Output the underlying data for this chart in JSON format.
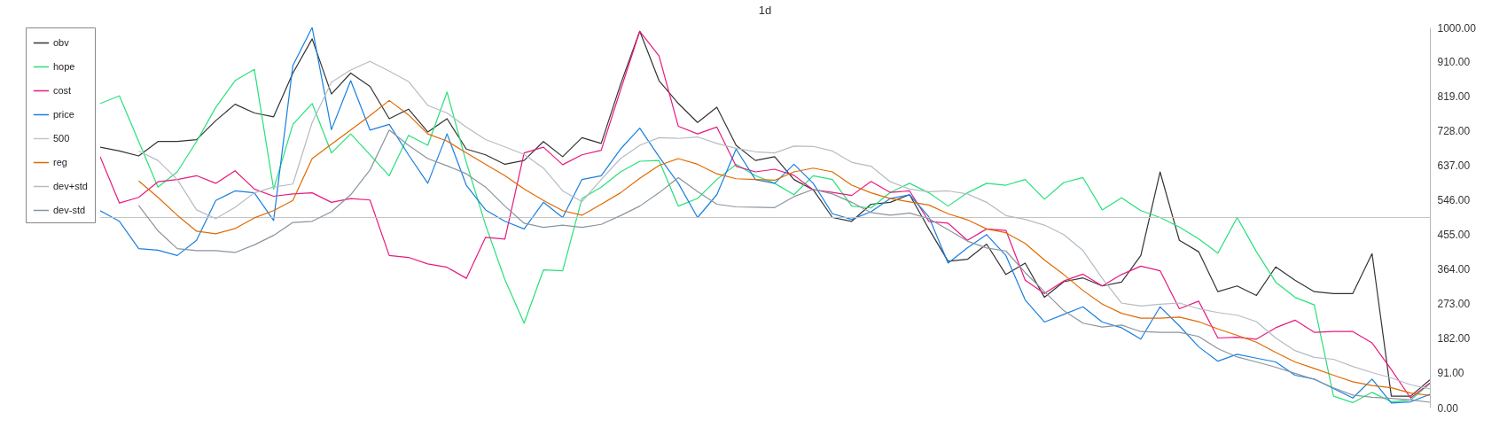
{
  "chart_data": {
    "type": "line",
    "title": "1d",
    "categories": [
      null,
      null,
      null,
      null,
      null,
      null,
      null,
      null,
      null,
      null,
      null,
      null,
      null,
      null,
      null,
      null,
      null,
      null,
      null,
      null,
      null,
      null,
      null,
      null,
      null,
      null,
      null,
      null,
      null,
      null,
      null,
      null,
      null,
      null,
      null,
      null,
      null,
      null,
      null,
      null,
      null,
      null,
      null,
      null,
      null,
      null,
      null,
      null,
      null,
      null,
      null,
      null,
      null,
      null,
      null,
      null,
      null,
      null,
      null,
      null,
      null,
      null,
      null,
      null,
      null,
      null,
      null,
      null,
      null,
      null
    ],
    "ylim": [
      0,
      1000
    ],
    "yticks": [
      {
        "value": 0,
        "label": "0.00"
      },
      {
        "value": 91,
        "label": "91.00"
      },
      {
        "value": 182,
        "label": "182.00"
      },
      {
        "value": 273,
        "label": "273.00"
      },
      {
        "value": 364,
        "label": "364.00"
      },
      {
        "value": 455,
        "label": "455.00"
      },
      {
        "value": 546,
        "label": "546.00"
      },
      {
        "value": 637,
        "label": "637.00"
      },
      {
        "value": 728,
        "label": "728.00"
      },
      {
        "value": 819,
        "label": "819.00"
      },
      {
        "value": 910,
        "label": "910.00"
      },
      {
        "value": 1000,
        "label": "1000.00"
      }
    ],
    "tick_labels": "y",
    "legend": "top left",
    "series": [
      {
        "name": "obv",
        "color": "#333333",
        "values": [
          685,
          675,
          662,
          700,
          700,
          705,
          755,
          798,
          775,
          765,
          880,
          970,
          825,
          880,
          845,
          760,
          785,
          725,
          760,
          680,
          665,
          640,
          650,
          700,
          660,
          710,
          695,
          850,
          990,
          860,
          800,
          750,
          790,
          690,
          650,
          660,
          600,
          573,
          500,
          490,
          535,
          540,
          560,
          470,
          385,
          390,
          430,
          350,
          380,
          290,
          331,
          341,
          320,
          330,
          400,
          620,
          440,
          410,
          305,
          320,
          295,
          370,
          335,
          305,
          300,
          300,
          405,
          30,
          30,
          73
        ]
      },
      {
        "name": "hope",
        "color": "#27e07a",
        "values": [
          800,
          820,
          700,
          580,
          620,
          700,
          790,
          860,
          890,
          575,
          745,
          800,
          670,
          720,
          665,
          610,
          716,
          690,
          830,
          645,
          480,
          337,
          222,
          362,
          360,
          550,
          580,
          620,
          648,
          650,
          530,
          550,
          600,
          640,
          610,
          590,
          560,
          610,
          600,
          530,
          525,
          566,
          590,
          565,
          530,
          565,
          590,
          585,
          600,
          548,
          592,
          605,
          520,
          552,
          518,
          500,
          475,
          444,
          406,
          500,
          410,
          330,
          290,
          270,
          30,
          13,
          40,
          15,
          20,
          63
        ]
      },
      {
        "name": "cost",
        "color": "#e8197f",
        "values": [
          660,
          538,
          553,
          594,
          600,
          610,
          590,
          623,
          575,
          556,
          562,
          565,
          540,
          550,
          546,
          400,
          395,
          378,
          369,
          340,
          448,
          443,
          670,
          685,
          639,
          665,
          677,
          835,
          990,
          925,
          740,
          720,
          738,
          635,
          620,
          627,
          611,
          573,
          566,
          558,
          595,
          566,
          570,
          490,
          485,
          440,
          470,
          466,
          335,
          300,
          333,
          351,
          320,
          350,
          372,
          360,
          260,
          280,
          183,
          185,
          180,
          210,
          230,
          198,
          200,
          200,
          170,
          100,
          25,
          65
        ]
      },
      {
        "name": "price",
        "color": "#1a7fe0",
        "values": [
          518,
          490,
          418,
          414,
          400,
          440,
          545,
          570,
          565,
          492,
          900,
          1000,
          731,
          860,
          730,
          745,
          665,
          590,
          720,
          585,
          520,
          490,
          470,
          540,
          500,
          600,
          610,
          680,
          735,
          660,
          590,
          500,
          560,
          680,
          600,
          590,
          640,
          590,
          510,
          495,
          515,
          550,
          560,
          502,
          380,
          420,
          455,
          400,
          283,
          225,
          245,
          265,
          225,
          210,
          180,
          265,
          215,
          160,
          122,
          140,
          130,
          120,
          85,
          75,
          50,
          25,
          75,
          12,
          15,
          35
        ]
      },
      {
        "name": "500",
        "color": "#c4c4c4",
        "values": [
          500,
          500,
          500,
          500,
          500,
          500,
          500,
          500,
          500,
          500,
          500,
          500,
          500,
          500,
          500,
          500,
          500,
          500,
          500,
          500,
          500,
          500,
          500,
          500,
          500,
          500,
          500,
          500,
          500,
          500,
          500,
          500,
          500,
          500,
          500,
          500,
          500,
          500,
          500,
          500,
          500,
          500,
          500,
          500,
          500,
          500,
          500,
          500,
          500,
          500,
          500,
          500,
          500,
          500,
          500,
          500,
          500,
          500,
          500,
          500,
          500,
          500,
          500,
          500,
          500,
          500,
          500,
          500,
          500,
          500
        ]
      },
      {
        "name": "reg",
        "color": "#e06a00",
        "values": [
          null,
          null,
          596,
          553,
          506,
          464,
          457,
          471,
          499,
          518,
          545,
          655,
          693,
          730,
          768,
          808,
          770,
          720,
          701,
          670,
          640,
          610,
          575,
          545,
          518,
          506,
          535,
          565,
          603,
          637,
          655,
          640,
          615,
          602,
          600,
          598,
          620,
          630,
          620,
          585,
          565,
          550,
          541,
          533,
          510,
          494,
          470,
          460,
          432,
          388,
          350,
          308,
          272,
          248,
          235,
          235,
          238,
          226,
          207,
          190,
          172,
          145,
          120,
          103,
          85,
          68,
          58,
          52,
          38,
          32
        ]
      },
      {
        "name": "dev+std",
        "color": "#b4bcc3",
        "values": [
          null,
          null,
          675,
          650,
          600,
          520,
          497,
          527,
          565,
          580,
          588,
          750,
          856,
          888,
          911,
          885,
          858,
          795,
          775,
          738,
          705,
          686,
          666,
          630,
          570,
          542,
          600,
          655,
          690,
          710,
          708,
          712,
          695,
          682,
          673,
          670,
          688,
          687,
          675,
          645,
          635,
          594,
          575,
          568,
          570,
          562,
          540,
          505,
          495,
          480,
          455,
          413,
          340,
          275,
          267,
          272,
          275,
          260,
          250,
          243,
          226,
          183,
          150,
          132,
          127,
          108,
          92,
          78,
          60,
          49
        ]
      },
      {
        "name": "dev-std",
        "color": "#8a959e",
        "values": [
          null,
          null,
          532,
          465,
          418,
          413,
          413,
          408,
          428,
          453,
          487,
          490,
          515,
          560,
          625,
          730,
          690,
          655,
          636,
          615,
          580,
          530,
          485,
          474,
          480,
          474,
          482,
          505,
          530,
          565,
          605,
          568,
          535,
          528,
          527,
          526,
          555,
          574,
          562,
          540,
          513,
          506,
          512,
          497,
          468,
          438,
          420,
          412,
          355,
          305,
          255,
          222,
          212,
          217,
          200,
          198,
          198,
          187,
          155,
          133,
          120,
          106,
          90,
          74,
          52,
          33,
          27,
          24,
          20,
          14
        ]
      }
    ]
  }
}
